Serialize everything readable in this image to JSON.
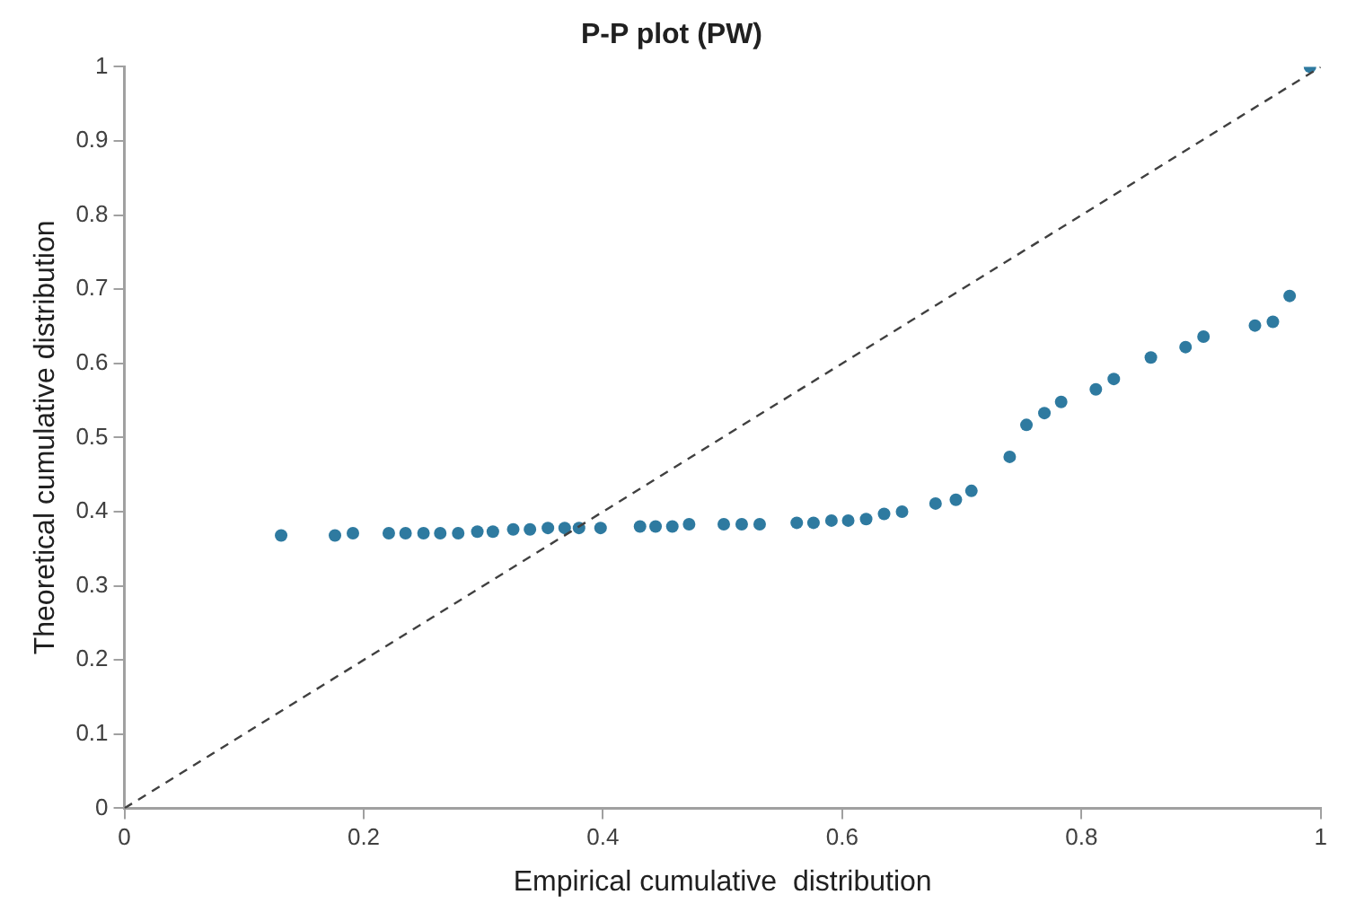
{
  "chart_data": {
    "type": "scatter",
    "title": "P-P plot (PW)",
    "xlabel": "Empirical cumulative  distribution",
    "ylabel": "Theoretical cumulative distribution",
    "xlim": [
      0,
      1
    ],
    "ylim": [
      0,
      1
    ],
    "xticks": [
      0,
      0.2,
      0.4,
      0.6,
      0.8,
      1
    ],
    "yticks": [
      0,
      0.1,
      0.2,
      0.3,
      0.4,
      0.5,
      0.6,
      0.7,
      0.8,
      0.9,
      1
    ],
    "grid": false,
    "marker": "circle",
    "series": [
      {
        "type": "line",
        "color": "#404040",
        "line_style": "dashed",
        "marker": "none",
        "x": [
          0,
          1
        ],
        "values": [
          0,
          1
        ]
      },
      {
        "type": "scatter",
        "color": "#2e7aa0",
        "x": [
          0.131,
          0.176,
          0.191,
          0.221,
          0.235,
          0.25,
          0.264,
          0.279,
          0.295,
          0.308,
          0.325,
          0.339,
          0.354,
          0.368,
          0.38,
          0.398,
          0.431,
          0.444,
          0.458,
          0.472,
          0.501,
          0.516,
          0.531,
          0.562,
          0.576,
          0.591,
          0.605,
          0.62,
          0.635,
          0.65,
          0.678,
          0.695,
          0.708,
          0.74,
          0.754,
          0.769,
          0.783,
          0.812,
          0.827,
          0.858,
          0.887,
          0.902,
          0.945,
          0.96,
          0.974,
          0.991
        ],
        "values": [
          0.368,
          0.368,
          0.371,
          0.371,
          0.371,
          0.371,
          0.371,
          0.371,
          0.373,
          0.373,
          0.376,
          0.376,
          0.378,
          0.378,
          0.378,
          0.378,
          0.38,
          0.38,
          0.38,
          0.383,
          0.383,
          0.383,
          0.383,
          0.385,
          0.385,
          0.388,
          0.388,
          0.39,
          0.397,
          0.4,
          0.411,
          0.416,
          0.428,
          0.474,
          0.517,
          0.533,
          0.548,
          0.565,
          0.579,
          0.608,
          0.622,
          0.636,
          0.651,
          0.656,
          0.691,
          1.0
        ]
      }
    ]
  }
}
